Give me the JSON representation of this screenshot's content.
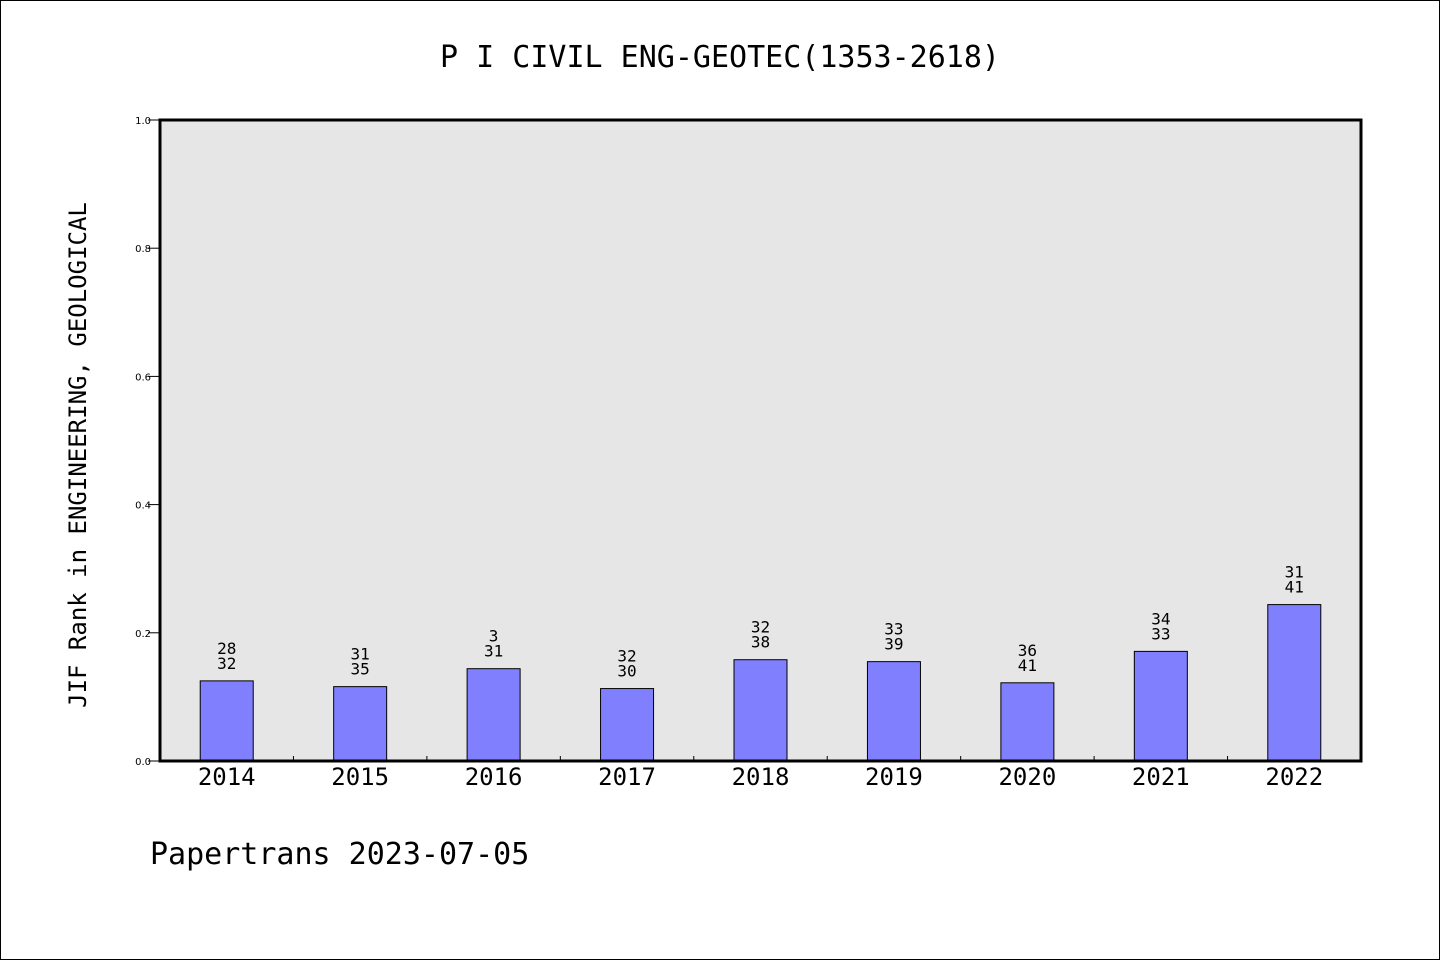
{
  "chart_data": {
    "type": "bar",
    "title": "P I CIVIL ENG-GEOTEC(1353-2618)",
    "ylabel": "JIF Rank in ENGINEERING, GEOLOGICAL",
    "xlabel": "",
    "ylim": [
      0,
      1.0
    ],
    "yticks": [
      "0.0",
      "0.2",
      "0.4",
      "0.6",
      "0.8",
      "1.0"
    ],
    "categories": [
      "2014",
      "2015",
      "2016",
      "2017",
      "2018",
      "2019",
      "2020",
      "2021",
      "2022"
    ],
    "values": [
      0.125,
      0.116,
      0.144,
      0.113,
      0.158,
      0.155,
      0.122,
      0.171,
      0.244
    ],
    "labels_top": [
      "28",
      "31",
      "3",
      "32",
      "32",
      "33",
      "36",
      "34",
      "31"
    ],
    "labels_bottom": [
      "32",
      "35",
      "31",
      "30",
      "38",
      "39",
      "41",
      "33",
      "41"
    ],
    "grid": false,
    "legend": "none",
    "colors": {
      "bar": "#8080ff",
      "plot_bg": "#e6e6e6",
      "axis": "#000000"
    }
  },
  "footer": "Papertrans 2023-07-05"
}
